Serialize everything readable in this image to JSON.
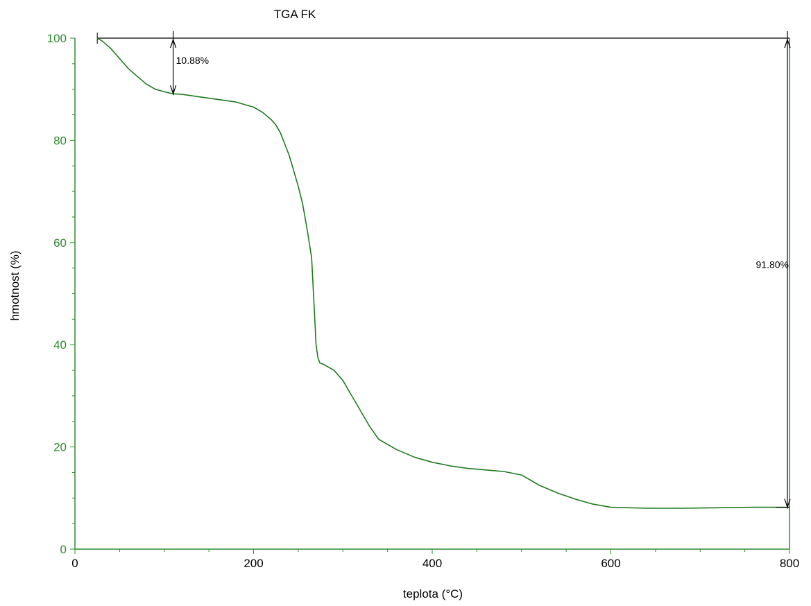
{
  "chart_data": {
    "type": "line",
    "title": "TGA FK",
    "xlabel": "teplota (°C)",
    "ylabel": "hmotnost (%)",
    "xlim": [
      0,
      800
    ],
    "ylim": [
      0,
      100
    ],
    "x_ticks": [
      "0",
      "200",
      "400",
      "600",
      "800"
    ],
    "y_ticks": [
      "0",
      "20",
      "40",
      "60",
      "80",
      "100"
    ],
    "grid": false,
    "legend": "none",
    "colors": {
      "axis": "#2e8b2e",
      "series": "#1f7a1f",
      "annotation": "#000000"
    },
    "series": [
      {
        "x": [
          25,
          30,
          40,
          50,
          60,
          70,
          80,
          90,
          100,
          110,
          120,
          140,
          160,
          180,
          200,
          210,
          220,
          225,
          230,
          240,
          250,
          255,
          260,
          265,
          270,
          272,
          274,
          276,
          278,
          280,
          290,
          300,
          310,
          320,
          330,
          340,
          350,
          360,
          380,
          400,
          420,
          440,
          460,
          480,
          500,
          510,
          520,
          540,
          560,
          580,
          600,
          620,
          640,
          680,
          720,
          760,
          800
        ],
        "y": [
          100,
          99.5,
          98,
          96,
          94,
          92.5,
          91,
          90,
          89.5,
          89.1,
          89,
          88.5,
          88,
          87.5,
          86.5,
          85.5,
          84,
          83,
          81.5,
          77,
          71,
          67.5,
          62.5,
          57,
          40,
          37.5,
          36.5,
          36.3,
          36.2,
          36,
          35,
          33,
          30,
          27,
          24,
          21.5,
          20.5,
          19.5,
          18,
          17,
          16.3,
          15.8,
          15.5,
          15.2,
          14.5,
          13.5,
          12.5,
          11,
          9.8,
          8.8,
          8.2,
          8.1,
          8,
          8,
          8.1,
          8.2,
          8.2
        ]
      }
    ],
    "annotations": [
      {
        "label": "10.88%",
        "x": 110,
        "y_from": 100,
        "y_to": 89.12
      },
      {
        "label": "91.80%",
        "x": 800,
        "y_from": 100,
        "y_to": 8.2
      }
    ],
    "reference_lines": [
      {
        "y": 100,
        "x_from": 25,
        "x_to": 800
      },
      {
        "y": 8.2,
        "x_from": 800,
        "x_to": 800
      }
    ]
  }
}
